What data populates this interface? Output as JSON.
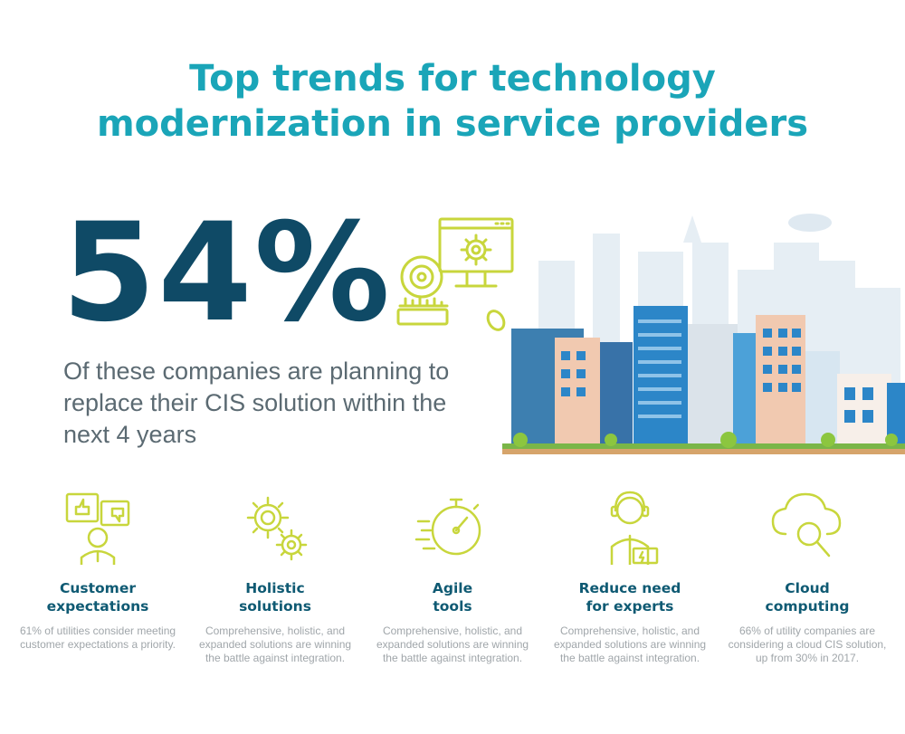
{
  "title": {
    "line1": "Top trends for technology",
    "line2": "modernization in service providers"
  },
  "headline": {
    "stat": "54%",
    "description": "Of these companies are planning to replace their CIS solution within the next 4 years"
  },
  "colors": {
    "teal": "#1aa5b8",
    "navy": "#0f4a66",
    "lime_icon": "#c8d63c",
    "gray_text": "#a0a6aa"
  },
  "features": [
    {
      "icon": "customer-feedback-icon",
      "title_line1": "Customer",
      "title_line2": "expectations",
      "desc_line1": "61% of utilities consider meeting",
      "desc_line2": "customer expectations a priority.",
      "desc_line3": ""
    },
    {
      "icon": "gears-icon",
      "title_line1": "Holistic",
      "title_line2": "solutions",
      "desc_line1": "Comprehensive, holistic, and",
      "desc_line2": "expanded solutions are winning",
      "desc_line3": "the battle against integration."
    },
    {
      "icon": "stopwatch-icon",
      "title_line1": "Agile",
      "title_line2": "tools",
      "desc_line1": "Comprehensive, holistic, and",
      "desc_line2": "expanded solutions are winning",
      "desc_line3": "the battle against integration."
    },
    {
      "icon": "expert-icon",
      "title_line1": "Reduce need",
      "title_line2": "for experts",
      "desc_line1": "Comprehensive, holistic, and",
      "desc_line2": "expanded solutions are winning",
      "desc_line3": "the battle against integration."
    },
    {
      "icon": "cloud-search-icon",
      "title_line1": "Cloud",
      "title_line2": "computing",
      "desc_line1": "66% of utility companies are",
      "desc_line2": "considering a cloud CIS solution,",
      "desc_line3": "up from 30% in 2017."
    }
  ]
}
